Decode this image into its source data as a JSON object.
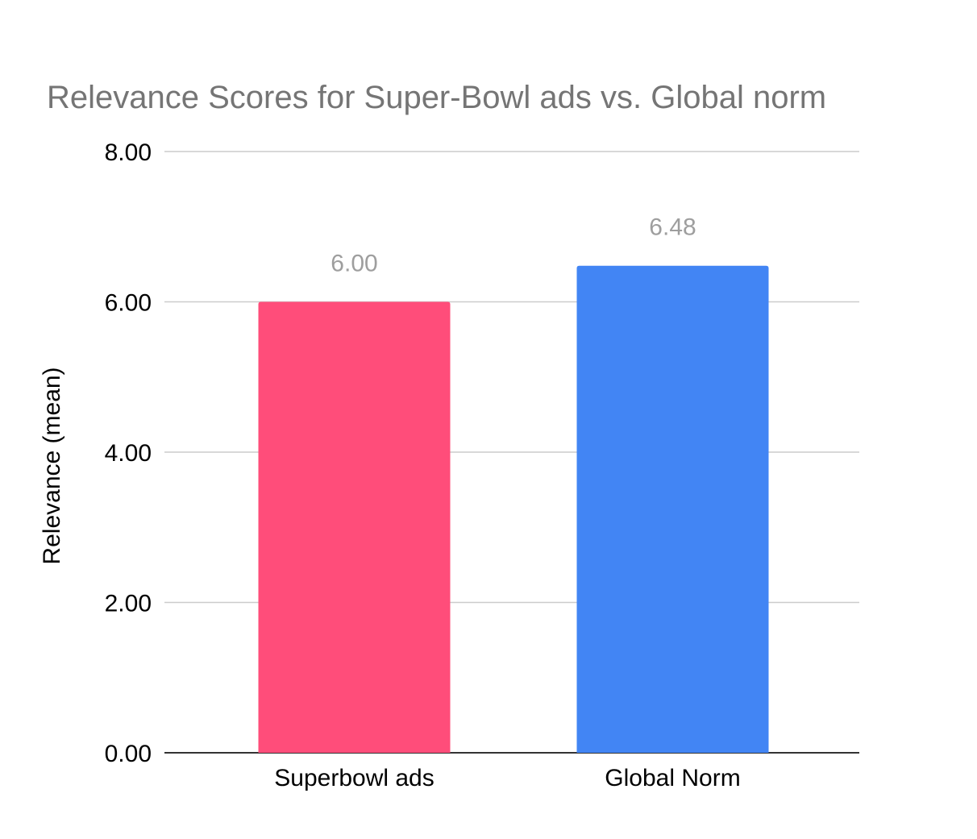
{
  "chart_data": {
    "type": "bar",
    "title": "Relevance Scores for Super-Bowl ads vs. Global norm",
    "xlabel": "",
    "ylabel": "Relevance (mean)",
    "categories": [
      "Superbowl ads",
      "Global Norm"
    ],
    "values": [
      6.0,
      6.48
    ],
    "data_labels": [
      "6.00",
      "6.48"
    ],
    "colors": [
      "#FF4D7A",
      "#4285F4"
    ],
    "ylim": [
      0,
      8
    ],
    "y_ticks": [
      0,
      2,
      4,
      6,
      8
    ],
    "y_tick_labels": [
      "0.00",
      "2.00",
      "4.00",
      "6.00",
      "8.00"
    ],
    "grid": true,
    "legend": "none"
  }
}
